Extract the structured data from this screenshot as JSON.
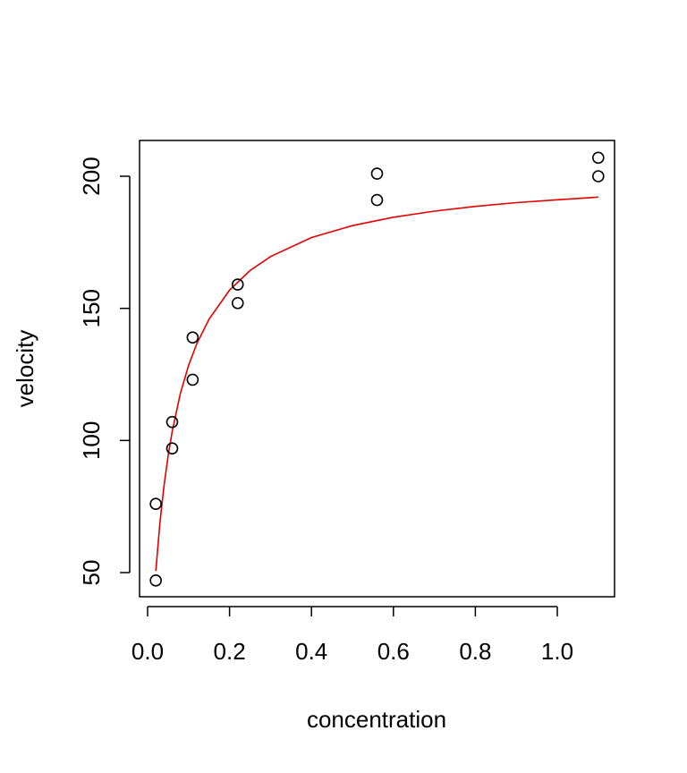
{
  "chart_data": {
    "type": "scatter",
    "title": "",
    "xlabel": "concentration",
    "ylabel": "velocity",
    "xlim": [
      0,
      1.1
    ],
    "ylim": [
      40,
      213
    ],
    "x_ticks": [
      0.0,
      0.2,
      0.4,
      0.6,
      0.8,
      1.0
    ],
    "x_tick_labels": [
      "0.0",
      "0.2",
      "0.4",
      "0.6",
      "0.8",
      "1.0"
    ],
    "y_ticks": [
      50,
      100,
      150,
      200
    ],
    "y_tick_labels": [
      "50",
      "100",
      "150",
      "200"
    ],
    "grid": false,
    "legend": "none",
    "series": [
      {
        "kind": "points",
        "marker": "open-circle",
        "color": "#000000",
        "x": [
          0.02,
          0.02,
          0.06,
          0.06,
          0.11,
          0.11,
          0.22,
          0.22,
          0.56,
          0.56,
          1.1,
          1.1
        ],
        "y": [
          76,
          47,
          97,
          107,
          123,
          139,
          159,
          152,
          191,
          201,
          207,
          200
        ]
      },
      {
        "kind": "fitted-line",
        "color": "#e00000",
        "x": [
          0.02,
          0.03,
          0.04,
          0.05,
          0.06,
          0.08,
          0.1,
          0.12,
          0.15,
          0.2,
          0.25,
          0.3,
          0.4,
          0.5,
          0.6,
          0.7,
          0.8,
          0.9,
          1.0,
          1.1
        ],
        "y": [
          50.6,
          68.6,
          82.7,
          94.1,
          103.4,
          117.8,
          128.4,
          136.6,
          145.9,
          156.9,
          164.3,
          169.6,
          176.8,
          181.3,
          184.5,
          186.8,
          188.6,
          190.0,
          191.1,
          192.1
        ]
      }
    ]
  }
}
